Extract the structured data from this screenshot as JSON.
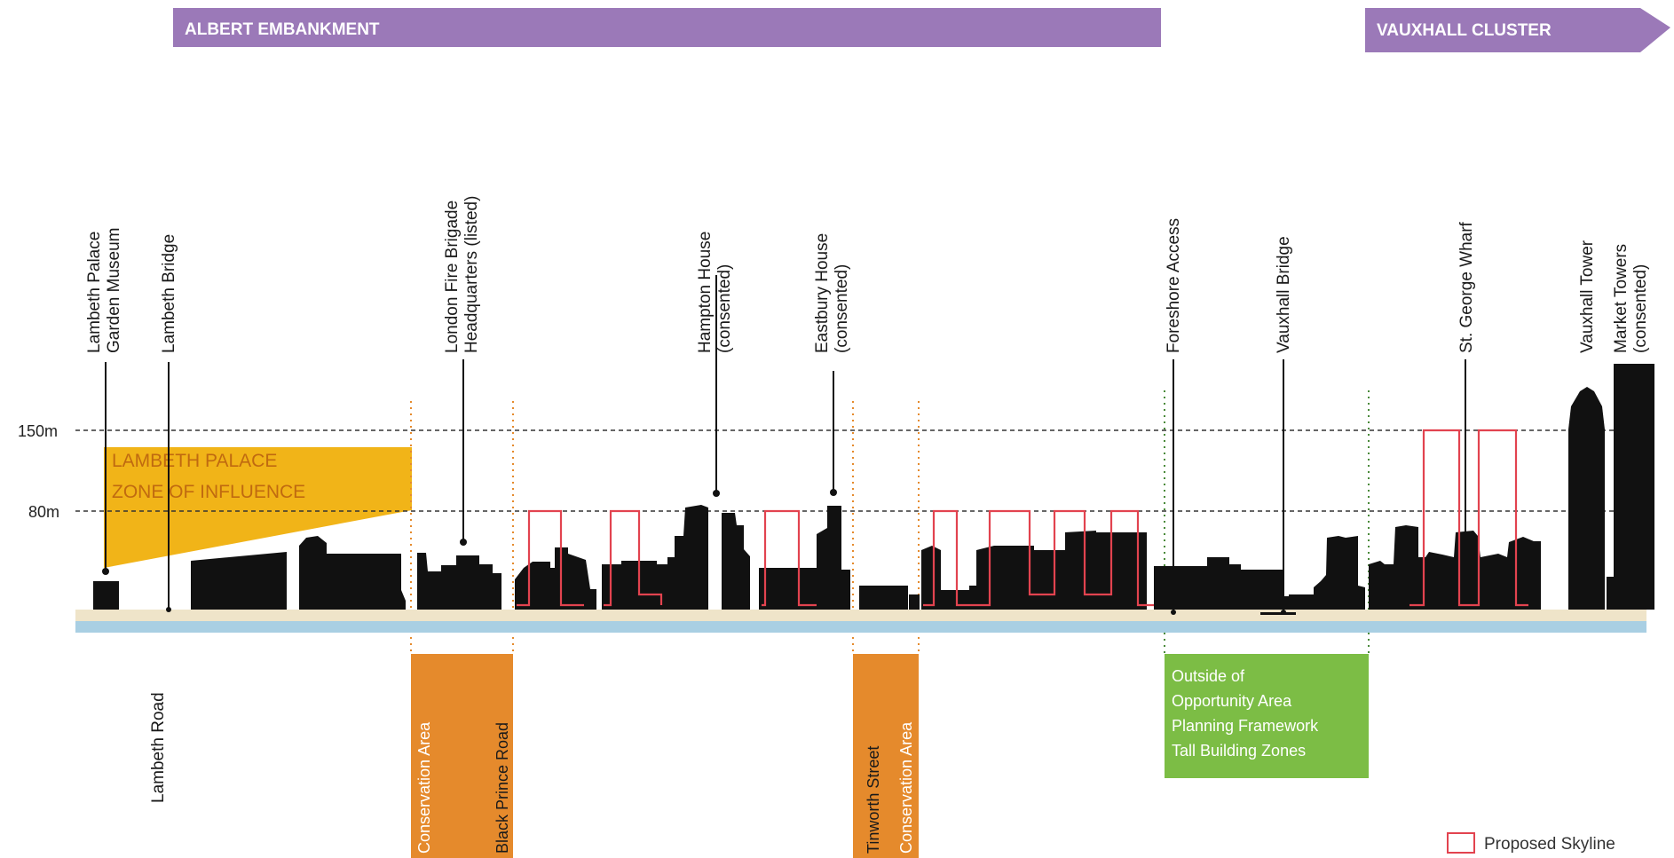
{
  "bands": {
    "albert": "ALBERT EMBANKMENT",
    "vauxhall": "VAUXHALL CLUSTER"
  },
  "levels": {
    "l150": "150m",
    "l80": "80m"
  },
  "zone": {
    "line1": "LAMBETH PALACE",
    "line2": "ZONE OF INFLUENCE"
  },
  "landmarks": [
    {
      "line1": "Lambeth Palace",
      "line2": "Garden Museum"
    },
    {
      "line1": "Lambeth Bridge",
      "line2": ""
    },
    {
      "line1": "London Fire Brigade",
      "line2": "Headquarters (listed)"
    },
    {
      "line1": "Hampton House",
      "line2": "(consented)"
    },
    {
      "line1": "Eastbury House",
      "line2": "(consented)"
    },
    {
      "line1": "Foreshore Access",
      "line2": ""
    },
    {
      "line1": "Vauxhall Bridge",
      "line2": ""
    },
    {
      "line1": "St. George Wharf",
      "line2": ""
    },
    {
      "line1": "Vauxhall Tower",
      "line2": ""
    },
    {
      "line1": "Market Towers",
      "line2": "(consented)"
    }
  ],
  "roads": {
    "lambeth_road": "Lambeth Road",
    "conservation_1": "Conservation Area",
    "black_prince": "Black Prince Road",
    "tinworth": "Tinworth Street",
    "conservation_2": "Conservation Area"
  },
  "green_box": [
    "Outside of",
    "Opportunity Area",
    "Planning Framework",
    "Tall Building Zones"
  ],
  "legend": {
    "label": "Proposed Skyline"
  },
  "colors": {
    "band_purple": "#9b79b8",
    "zone_yellow": "#f1b418",
    "zone_text": "#c06a10",
    "conservation_orange": "#e58a2c",
    "green_box": "#7cbd45",
    "proposed_red": "#e2434f",
    "buildings": "#111111",
    "ground_beige": "#efe4c9",
    "river_blue": "#a9cfe3"
  }
}
